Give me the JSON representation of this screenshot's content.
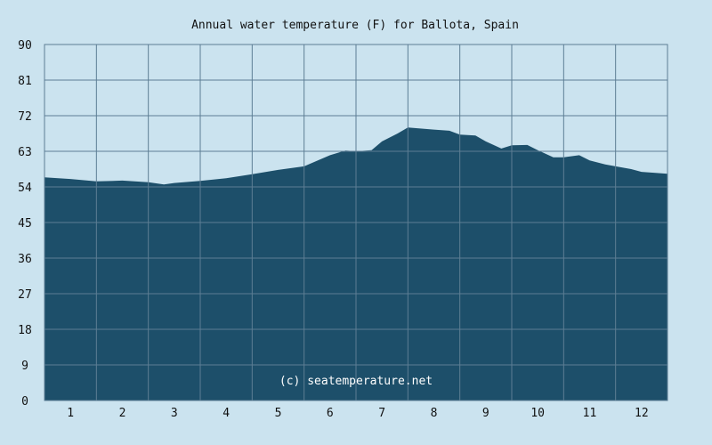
{
  "chart_data": {
    "type": "area",
    "title": "Annual water temperature (F) for Ballota, Spain",
    "xlabel": "",
    "ylabel": "",
    "x_ticks": [
      "1",
      "2",
      "3",
      "4",
      "5",
      "6",
      "7",
      "8",
      "9",
      "10",
      "11",
      "12"
    ],
    "y_ticks": [
      "0",
      "9",
      "18",
      "27",
      "36",
      "45",
      "54",
      "63",
      "72",
      "81",
      "90"
    ],
    "ylim": [
      0,
      90
    ],
    "xlim": [
      0.5,
      12.5
    ],
    "grid": true,
    "watermark": "(c) seatemperature.net",
    "colors": {
      "fill": "#1d4f6a",
      "background": "#cbe3ef",
      "grid": "#5d7e94"
    },
    "series": [
      {
        "x": [
          0.5,
          1.0,
          1.5,
          2.0,
          2.5,
          2.8,
          3.0,
          3.5,
          4.0,
          4.5,
          5.0,
          5.5,
          6.0,
          6.3,
          6.5,
          6.8,
          7.0,
          7.3,
          7.5,
          8.0,
          8.3,
          8.5,
          8.8,
          9.0,
          9.3,
          9.5,
          9.8,
          10.0,
          10.3,
          10.5,
          10.8,
          11.0,
          11.3,
          11.5,
          11.8,
          12.0,
          12.3,
          12.5
        ],
        "values": [
          56.4,
          56.0,
          55.4,
          55.6,
          55.2,
          54.6,
          55.0,
          55.5,
          56.2,
          57.2,
          58.3,
          59.2,
          62.0,
          63.2,
          63.0,
          63.3,
          65.5,
          67.5,
          69.0,
          68.5,
          68.2,
          67.2,
          67.0,
          65.5,
          63.7,
          64.5,
          64.6,
          63.3,
          61.5,
          61.5,
          62.0,
          60.7,
          59.7,
          59.2,
          58.5,
          57.8,
          57.5,
          57.3
        ]
      }
    ]
  }
}
